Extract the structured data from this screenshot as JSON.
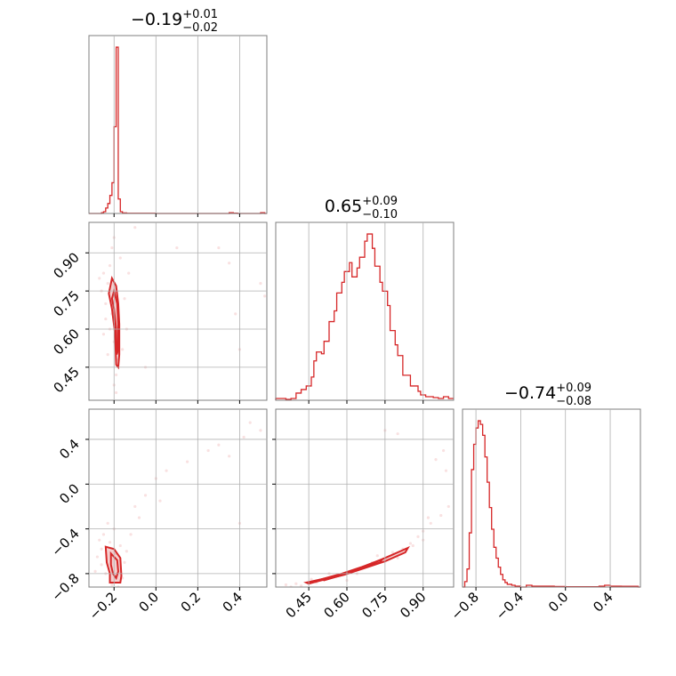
{
  "chart_data": {
    "type": "corner",
    "color": "#d62728",
    "grid": true,
    "parameters": [
      {
        "id": "p1",
        "summary": {
          "median": "−0.19",
          "plus": "+0.01",
          "minus": "−0.02"
        },
        "range": [
          -0.32,
          0.53
        ],
        "ticks": [
          {
            "value": -0.2,
            "label": "−0.2"
          },
          {
            "value": 0.0,
            "label": "0.0"
          },
          {
            "value": 0.2,
            "label": "0.2"
          },
          {
            "value": 0.4,
            "label": "0.4"
          }
        ],
        "hist": [
          [
            -0.32,
            0
          ],
          [
            -0.3,
            0
          ],
          [
            -0.28,
            0
          ],
          [
            -0.26,
            0.004
          ],
          [
            -0.25,
            0.01
          ],
          [
            -0.24,
            0.03
          ],
          [
            -0.23,
            0.055
          ],
          [
            -0.22,
            0.1
          ],
          [
            -0.21,
            0.17
          ],
          [
            -0.2,
            0.48
          ],
          [
            -0.19,
            0.92
          ],
          [
            -0.18,
            0.08
          ],
          [
            -0.17,
            0.01
          ],
          [
            -0.16,
            0.003
          ],
          [
            -0.14,
            0.001
          ],
          [
            0.0,
            0
          ],
          [
            0.35,
            0.004
          ],
          [
            0.37,
            0.002
          ],
          [
            0.39,
            0
          ],
          [
            0.5,
            0.004
          ],
          [
            0.52,
            0
          ]
        ]
      },
      {
        "id": "p2",
        "summary": {
          "median": "0.65",
          "plus": "+0.09",
          "minus": "−0.10"
        },
        "range": [
          0.32,
          1.02
        ],
        "ticks": [
          {
            "value": 0.45,
            "label": "0.45"
          },
          {
            "value": 0.6,
            "label": "0.60"
          },
          {
            "value": 0.75,
            "label": "0.75"
          },
          {
            "value": 0.9,
            "label": "0.90"
          }
        ],
        "hist": [
          [
            0.32,
            0.01
          ],
          [
            0.34,
            0.01
          ],
          [
            0.36,
            0.005
          ],
          [
            0.38,
            0.01
          ],
          [
            0.4,
            0.04
          ],
          [
            0.42,
            0.06
          ],
          [
            0.44,
            0.08
          ],
          [
            0.46,
            0.13
          ],
          [
            0.47,
            0.22
          ],
          [
            0.48,
            0.27
          ],
          [
            0.5,
            0.26
          ],
          [
            0.51,
            0.33
          ],
          [
            0.53,
            0.44
          ],
          [
            0.55,
            0.5
          ],
          [
            0.56,
            0.6
          ],
          [
            0.58,
            0.66
          ],
          [
            0.59,
            0.72
          ],
          [
            0.61,
            0.77
          ],
          [
            0.62,
            0.69
          ],
          [
            0.64,
            0.74
          ],
          [
            0.65,
            0.8
          ],
          [
            0.67,
            0.89
          ],
          [
            0.68,
            0.93
          ],
          [
            0.7,
            0.85
          ],
          [
            0.71,
            0.75
          ],
          [
            0.73,
            0.66
          ],
          [
            0.74,
            0.61
          ],
          [
            0.76,
            0.53
          ],
          [
            0.77,
            0.39
          ],
          [
            0.79,
            0.31
          ],
          [
            0.8,
            0.25
          ],
          [
            0.82,
            0.14
          ],
          [
            0.83,
            0.14
          ],
          [
            0.85,
            0.08
          ],
          [
            0.86,
            0.08
          ],
          [
            0.88,
            0.05
          ],
          [
            0.89,
            0.03
          ],
          [
            0.91,
            0.02
          ],
          [
            0.92,
            0.02
          ],
          [
            0.94,
            0.015
          ],
          [
            0.96,
            0.01
          ],
          [
            0.98,
            0.02
          ],
          [
            1.0,
            0.01
          ]
        ]
      },
      {
        "id": "p3",
        "summary": {
          "median": "−0.74",
          "plus": "+0.09",
          "minus": "−0.08"
        },
        "range": [
          -0.92,
          0.67
        ],
        "ticks": [
          {
            "value": -0.8,
            "label": "−0.8"
          },
          {
            "value": -0.4,
            "label": "−0.4"
          },
          {
            "value": 0.0,
            "label": "0.0"
          },
          {
            "value": 0.4,
            "label": "0.4"
          }
        ],
        "hist": [
          [
            -0.92,
            0
          ],
          [
            -0.9,
            0.03
          ],
          [
            -0.88,
            0.1
          ],
          [
            -0.86,
            0.3
          ],
          [
            -0.84,
            0.65
          ],
          [
            -0.82,
            0.79
          ],
          [
            -0.8,
            0.88
          ],
          [
            -0.78,
            0.92
          ],
          [
            -0.76,
            0.9
          ],
          [
            -0.74,
            0.84
          ],
          [
            -0.72,
            0.72
          ],
          [
            -0.7,
            0.58
          ],
          [
            -0.68,
            0.44
          ],
          [
            -0.66,
            0.32
          ],
          [
            -0.64,
            0.22
          ],
          [
            -0.62,
            0.16
          ],
          [
            -0.6,
            0.11
          ],
          [
            -0.58,
            0.07
          ],
          [
            -0.56,
            0.04
          ],
          [
            -0.54,
            0.025
          ],
          [
            -0.52,
            0.015
          ],
          [
            -0.48,
            0.01
          ],
          [
            -0.45,
            0.005
          ],
          [
            -0.4,
            0
          ],
          [
            -0.35,
            0.01
          ],
          [
            -0.3,
            0.005
          ],
          [
            -0.2,
            0.005
          ],
          [
            -0.1,
            0.003
          ],
          [
            0.0,
            0.002
          ],
          [
            0.3,
            0.005
          ],
          [
            0.35,
            0.01
          ],
          [
            0.4,
            0.005
          ],
          [
            0.5,
            0.004
          ],
          [
            0.65,
            0
          ]
        ]
      }
    ],
    "pairs": [
      {
        "x_param": "p1",
        "y_param": "p2",
        "contours": [
          [
            [
              -0.21,
              0.8
            ],
            [
              -0.19,
              0.77
            ],
            [
              -0.18,
              0.7
            ],
            [
              -0.175,
              0.62
            ],
            [
              -0.175,
              0.5
            ],
            [
              -0.18,
              0.45
            ],
            [
              -0.19,
              0.46
            ],
            [
              -0.195,
              0.58
            ],
            [
              -0.21,
              0.68
            ],
            [
              -0.225,
              0.74
            ]
          ],
          [
            [
              -0.2,
              0.75
            ],
            [
              -0.185,
              0.7
            ],
            [
              -0.18,
              0.62
            ],
            [
              -0.18,
              0.52
            ],
            [
              -0.187,
              0.5
            ],
            [
              -0.19,
              0.6
            ],
            [
              -0.2,
              0.68
            ],
            [
              -0.21,
              0.72
            ]
          ]
        ],
        "samples": [
          [
            -0.25,
            0.82
          ],
          [
            -0.23,
            0.78
          ],
          [
            -0.22,
            0.85
          ],
          [
            -0.24,
            0.7
          ],
          [
            -0.21,
            0.66
          ],
          [
            -0.26,
            0.75
          ],
          [
            -0.2,
            0.55
          ],
          [
            -0.19,
            0.42
          ],
          [
            -0.2,
            0.38
          ],
          [
            -0.18,
            0.48
          ],
          [
            -0.22,
            0.6
          ],
          [
            -0.24,
            0.64
          ],
          [
            -0.16,
            0.52
          ],
          [
            -0.17,
            0.88
          ],
          [
            -0.21,
            0.92
          ],
          [
            -0.15,
            0.72
          ],
          [
            -0.27,
            0.8
          ],
          [
            -0.23,
            0.5
          ],
          [
            -0.19,
            0.35
          ],
          [
            -0.14,
            0.6
          ],
          [
            -0.25,
            0.58
          ],
          [
            -0.13,
            0.82
          ],
          [
            -0.2,
            0.96
          ],
          [
            -0.1,
            1.0
          ],
          [
            0.3,
            0.92
          ],
          [
            0.35,
            0.86
          ],
          [
            0.38,
            0.66
          ],
          [
            0.5,
            0.78
          ],
          [
            0.52,
            0.73
          ],
          [
            0.1,
            0.92
          ],
          [
            0.4,
            0.52
          ],
          [
            -0.05,
            0.45
          ]
        ]
      },
      {
        "x_param": "p1",
        "y_param": "p3",
        "contours": [
          [
            [
              -0.24,
              -0.56
            ],
            [
              -0.2,
              -0.58
            ],
            [
              -0.17,
              -0.66
            ],
            [
              -0.165,
              -0.82
            ],
            [
              -0.17,
              -0.88
            ],
            [
              -0.22,
              -0.88
            ],
            [
              -0.22,
              -0.8
            ],
            [
              -0.235,
              -0.7
            ]
          ],
          [
            [
              -0.215,
              -0.62
            ],
            [
              -0.185,
              -0.68
            ],
            [
              -0.18,
              -0.78
            ],
            [
              -0.19,
              -0.84
            ],
            [
              -0.205,
              -0.8
            ],
            [
              -0.215,
              -0.72
            ]
          ]
        ],
        "samples": [
          [
            -0.27,
            -0.5
          ],
          [
            -0.25,
            -0.45
          ],
          [
            -0.22,
            -0.52
          ],
          [
            -0.28,
            -0.65
          ],
          [
            -0.26,
            -0.72
          ],
          [
            -0.24,
            -0.8
          ],
          [
            -0.21,
            -0.9
          ],
          [
            -0.18,
            -0.92
          ],
          [
            -0.15,
            -0.7
          ],
          [
            -0.14,
            -0.6
          ],
          [
            -0.2,
            -0.4
          ],
          [
            -0.23,
            -0.35
          ],
          [
            -0.17,
            -0.55
          ],
          [
            -0.1,
            -0.2
          ],
          [
            -0.05,
            -0.1
          ],
          [
            -0.12,
            -0.45
          ],
          [
            0.0,
            0.05
          ],
          [
            0.05,
            0.12
          ],
          [
            0.25,
            0.3
          ],
          [
            0.3,
            0.35
          ],
          [
            0.42,
            0.42
          ],
          [
            0.5,
            0.48
          ],
          [
            0.45,
            0.55
          ],
          [
            0.35,
            0.25
          ],
          [
            -0.29,
            -0.78
          ],
          [
            -0.26,
            -0.58
          ],
          [
            -0.19,
            -0.62
          ],
          [
            -0.16,
            -0.84
          ],
          [
            0.4,
            -0.35
          ],
          [
            0.02,
            -0.15
          ],
          [
            -0.08,
            -0.3
          ],
          [
            0.15,
            0.2
          ]
        ]
      },
      {
        "x_param": "p2",
        "y_param": "p3",
        "contours": [
          [
            [
              0.44,
              -0.88
            ],
            [
              0.52,
              -0.84
            ],
            [
              0.6,
              -0.79
            ],
            [
              0.68,
              -0.73
            ],
            [
              0.76,
              -0.65
            ],
            [
              0.84,
              -0.57
            ],
            [
              0.83,
              -0.61
            ],
            [
              0.75,
              -0.69
            ],
            [
              0.67,
              -0.75
            ],
            [
              0.59,
              -0.81
            ],
            [
              0.5,
              -0.86
            ],
            [
              0.45,
              -0.89
            ]
          ],
          [
            [
              0.5,
              -0.85
            ],
            [
              0.58,
              -0.8
            ],
            [
              0.66,
              -0.74
            ],
            [
              0.74,
              -0.67
            ],
            [
              0.73,
              -0.7
            ],
            [
              0.65,
              -0.76
            ],
            [
              0.57,
              -0.82
            ],
            [
              0.51,
              -0.86
            ]
          ]
        ],
        "samples": [
          [
            0.36,
            -0.9
          ],
          [
            0.4,
            -0.89
          ],
          [
            0.42,
            -0.91
          ],
          [
            0.48,
            -0.88
          ],
          [
            0.55,
            -0.83
          ],
          [
            0.62,
            -0.78
          ],
          [
            0.7,
            -0.7
          ],
          [
            0.78,
            -0.61
          ],
          [
            0.85,
            -0.53
          ],
          [
            0.88,
            -0.47
          ],
          [
            0.9,
            -0.42
          ],
          [
            0.93,
            -0.35
          ],
          [
            0.97,
            -0.28
          ],
          [
            1.0,
            -0.2
          ],
          [
            0.82,
            -0.58
          ],
          [
            0.86,
            -0.55
          ],
          [
            0.9,
            -0.5
          ],
          [
            0.72,
            -0.64
          ],
          [
            0.8,
            -0.66
          ],
          [
            0.64,
            -0.8
          ],
          [
            0.75,
            0.48
          ],
          [
            0.8,
            0.45
          ],
          [
            0.95,
            0.22
          ],
          [
            0.98,
            0.3
          ],
          [
            0.99,
            0.12
          ],
          [
            0.92,
            -0.3
          ],
          [
            0.6,
            -0.86
          ],
          [
            0.53,
            -0.8
          ],
          [
            0.46,
            -0.85
          ],
          [
            0.38,
            -0.92
          ]
        ]
      }
    ]
  }
}
